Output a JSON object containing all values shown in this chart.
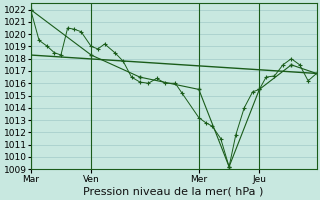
{
  "background_color": "#c8e8e0",
  "grid_color": "#a8d0cc",
  "line_color": "#1a5c1a",
  "ylim": [
    1009,
    1022.5
  ],
  "yticks": [
    1009,
    1010,
    1011,
    1012,
    1013,
    1014,
    1015,
    1016,
    1017,
    1018,
    1019,
    1020,
    1021,
    1022
  ],
  "xlabel": "Pression niveau de la mer( hPa )",
  "xlabel_fontsize": 8,
  "tick_fontsize": 6.5,
  "day_labels": [
    "Mar",
    "Ven",
    "Mer",
    "Jeu"
  ],
  "day_positions": [
    0,
    36,
    100,
    136
  ],
  "xlim": [
    0,
    170
  ],
  "line1_x": [
    0,
    5,
    10,
    14,
    18,
    22,
    26,
    30,
    36,
    40,
    44,
    50,
    55,
    60,
    65,
    70,
    75,
    80,
    86,
    90,
    100,
    104,
    108,
    113,
    118,
    122,
    127,
    132,
    136,
    140,
    145,
    150,
    155,
    160,
    165,
    170
  ],
  "line1_y": [
    1022.0,
    1019.5,
    1019.0,
    1018.5,
    1018.3,
    1020.5,
    1020.4,
    1020.2,
    1019.0,
    1018.8,
    1019.2,
    1018.5,
    1017.8,
    1016.5,
    1016.1,
    1016.0,
    1016.4,
    1016.0,
    1016.0,
    1015.2,
    1013.2,
    1012.8,
    1012.5,
    1011.5,
    1009.2,
    1011.8,
    1014.0,
    1015.3,
    1015.5,
    1016.5,
    1016.6,
    1017.5,
    1018.0,
    1017.5,
    1016.2,
    1016.8
  ],
  "line2_x": [
    0,
    36,
    65,
    100,
    118,
    136,
    155,
    170
  ],
  "line2_y": [
    1022.0,
    1018.3,
    1016.5,
    1015.5,
    1009.2,
    1015.5,
    1017.5,
    1016.8
  ],
  "line3_x": [
    0,
    170
  ],
  "line3_y": [
    1018.3,
    1016.8
  ]
}
